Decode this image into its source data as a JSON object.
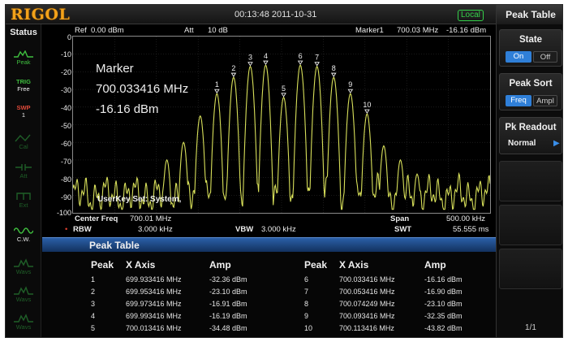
{
  "brand": "RIGOL",
  "datetime": "00:13:48 2011-10-31",
  "mode_badge": "Local",
  "status": {
    "title": "Status",
    "items": [
      {
        "label": "Peak",
        "icon": "peak-wave-icon"
      },
      {
        "label": "TRIG\nFree",
        "icon": ""
      },
      {
        "label": "SWP\n1",
        "icon": ""
      },
      {
        "label": "Cal",
        "icon": "cal-icon"
      },
      {
        "label": "Att",
        "icon": "att-icon"
      },
      {
        "label": "Ext",
        "icon": "ext-icon"
      },
      {
        "label": "C.W.",
        "icon": "cw-wave-icon"
      },
      {
        "label": "Wavs",
        "icon": "wave-icon"
      },
      {
        "label": "Wavs",
        "icon": "wave-icon"
      },
      {
        "label": "Wavs",
        "icon": "wave-icon"
      }
    ]
  },
  "spectrum": {
    "ref_label": "Ref",
    "ref_value": "0.00 dBm",
    "att_label": "Att",
    "att_value": "10 dB",
    "marker_label": "Marker1",
    "marker_freq": "700.03 MHz",
    "marker_amp": "-16.16 dBm",
    "y_ticks": [
      "0",
      "-10",
      "-20",
      "-30",
      "-40",
      "-50",
      "-60",
      "-70",
      "-80",
      "-90",
      "-100"
    ],
    "marker_readout": {
      "title": "Marker",
      "freq": "700.033416 MHz",
      "amp": "-16.16 dBm"
    },
    "userkey": "UserKey Set:   System,",
    "peak_labels": [
      "1",
      "2",
      "3",
      "4",
      "5",
      "6",
      "7",
      "8",
      "9",
      "10"
    ],
    "center_freq_label": "Center Freq",
    "center_freq_value": "700.01 MHz",
    "span_label": "Span",
    "span_value": "500.00 kHz",
    "rbw_label": "RBW",
    "rbw_value": "3.000 kHz",
    "vbw_label": "VBW",
    "vbw_value": "3.000 kHz",
    "swt_label": "SWT",
    "swt_value": "55.555 ms",
    "trace_color": "#d8e05a"
  },
  "peak_table": {
    "title": "Peak Table",
    "headers": [
      "Peak",
      "X Axis",
      "Amp",
      "Peak",
      "X Axis",
      "Amp"
    ],
    "left": [
      {
        "peak": "1",
        "x": "699.933416 MHz",
        "amp": "-32.36 dBm"
      },
      {
        "peak": "2",
        "x": "699.953416 MHz",
        "amp": "-23.10 dBm"
      },
      {
        "peak": "3",
        "x": "699.973416 MHz",
        "amp": "-16.91 dBm"
      },
      {
        "peak": "4",
        "x": "699.993416 MHz",
        "amp": "-16.19 dBm"
      },
      {
        "peak": "5",
        "x": "700.013416 MHz",
        "amp": "-34.48 dBm"
      }
    ],
    "right": [
      {
        "peak": "6",
        "x": "700.033416 MHz",
        "amp": "-16.16 dBm"
      },
      {
        "peak": "7",
        "x": "700.053416 MHz",
        "amp": "-16.90 dBm"
      },
      {
        "peak": "8",
        "x": "700.074249 MHz",
        "amp": "-23.10 dBm"
      },
      {
        "peak": "9",
        "x": "700.093416 MHz",
        "amp": "-32.35 dBm"
      },
      {
        "peak": "10",
        "x": "700.113416 MHz",
        "amp": "-43.82 dBm"
      }
    ]
  },
  "menu": {
    "title": "Peak Table",
    "state_label": "State",
    "state_on": "On",
    "state_off": "Off",
    "sort_label": "Peak Sort",
    "sort_freq": "Freq",
    "sort_ampl": "Ampl",
    "readout_label": "Pk Readout",
    "readout_value": "Normal",
    "page": "1/1"
  },
  "colors": {
    "accent_blue": "#2f7fd8",
    "brand_orange": "#f3a21a",
    "status_green": "#3fbf3f",
    "trace_yellow": "#d8e05a"
  }
}
